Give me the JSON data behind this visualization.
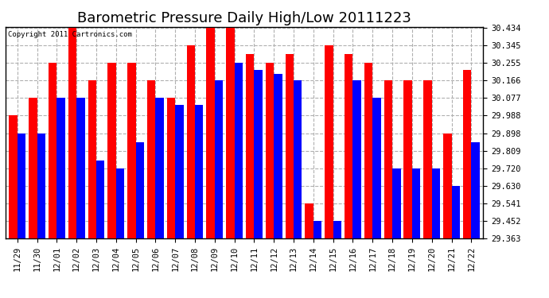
{
  "title": "Barometric Pressure Daily High/Low 20111223",
  "copyright": "Copyright 2011 Cartronics.com",
  "dates": [
    "11/29",
    "11/30",
    "12/01",
    "12/02",
    "12/03",
    "12/04",
    "12/05",
    "12/06",
    "12/07",
    "12/08",
    "12/09",
    "12/10",
    "12/11",
    "12/12",
    "12/13",
    "12/14",
    "12/15",
    "12/16",
    "12/17",
    "12/18",
    "12/19",
    "12/20",
    "12/21",
    "12/22"
  ],
  "highs": [
    29.988,
    30.077,
    30.255,
    30.434,
    30.166,
    30.255,
    30.255,
    30.166,
    30.077,
    30.345,
    30.434,
    30.434,
    30.3,
    30.255,
    30.3,
    29.541,
    30.345,
    30.3,
    30.255,
    30.166,
    30.166,
    30.166,
    29.898,
    30.22
  ],
  "lows": [
    29.898,
    29.898,
    30.077,
    30.077,
    29.76,
    29.72,
    29.85,
    30.077,
    30.04,
    30.04,
    30.166,
    30.255,
    30.22,
    30.2,
    30.166,
    29.452,
    29.452,
    30.166,
    30.077,
    29.72,
    29.72,
    29.72,
    29.63,
    29.85
  ],
  "high_color": "#ff0000",
  "low_color": "#0000ff",
  "bg_color": "#ffffff",
  "grid_color": "#b0b0b0",
  "ymin": 29.363,
  "ymax": 30.434,
  "yticks": [
    29.363,
    29.452,
    29.541,
    29.63,
    29.72,
    29.809,
    29.898,
    29.988,
    30.077,
    30.166,
    30.255,
    30.345,
    30.434
  ],
  "bar_width": 0.42,
  "title_fontsize": 13,
  "tick_fontsize": 7.5,
  "copyright_fontsize": 6.5
}
